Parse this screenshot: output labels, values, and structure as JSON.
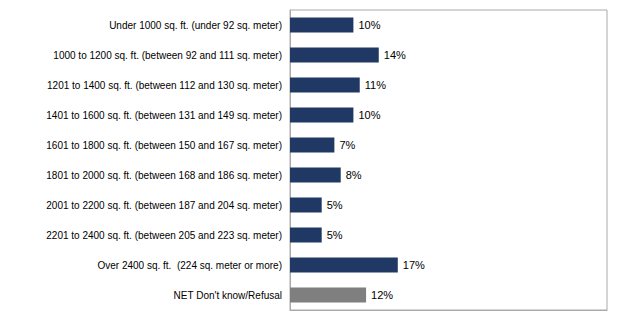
{
  "chart_data": {
    "type": "bar",
    "orientation": "horizontal",
    "categories": [
      "Under 1000 sq. ft. (under 92 sq. meter)",
      "1000 to 1200 sq. ft. (between 92 and 111 sq. meter)",
      "1201 to 1400 sq. ft. (between 112 and 130 sq. meter)",
      "1401 to 1600 sq. ft. (between 131 and 149 sq. meter)",
      "1601 to 1800 sq. ft. (between 150 and 167 sq. meter)",
      "1801 to 2000 sq. ft. (between 168 and 186 sq. meter)",
      "2001 to 2200 sq. ft. (between 187 and 204 sq. meter)",
      "2201 to 2400 sq. ft. (between 205 and 223 sq. meter)",
      "Over 2400 sq. ft.  (224 sq. meter or more)",
      "NET Don't know/Refusal"
    ],
    "values": [
      10,
      14,
      11,
      10,
      7,
      8,
      5,
      5,
      17,
      12
    ],
    "value_labels": [
      "10%",
      "14%",
      "11%",
      "10%",
      "7%",
      "8%",
      "5%",
      "5%",
      "17%",
      "12%"
    ],
    "colors": [
      "#1F3864",
      "#1F3864",
      "#1F3864",
      "#1F3864",
      "#1F3864",
      "#1F3864",
      "#1F3864",
      "#1F3864",
      "#1F3864",
      "#7F7F7F"
    ],
    "xlim": [
      0,
      50
    ],
    "data_labels": true,
    "tick_labels": "y",
    "grid": false
  }
}
